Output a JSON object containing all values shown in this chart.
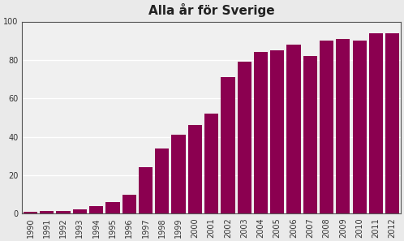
{
  "title": "Alla år för Sverige",
  "years": [
    "1990",
    "1991",
    "1992",
    "1993",
    "1994",
    "1995",
    "1996",
    "1997",
    "1998",
    "1999",
    "2000",
    "2001",
    "2002",
    "2003",
    "2004",
    "2005",
    "2006",
    "2007",
    "2008",
    "2009",
    "2010",
    "2011",
    "2012"
  ],
  "values": [
    1,
    1.5,
    1.5,
    2,
    4,
    6,
    10,
    24,
    34,
    41,
    46,
    52,
    71,
    79,
    84,
    85,
    88,
    82,
    90,
    91,
    90,
    94,
    94
  ],
  "bar_color": "#8B0050",
  "bg_color": "#EAEAEA",
  "plot_bg_color": "#F0F0F0",
  "ylim": [
    0,
    100
  ],
  "yticks": [
    0,
    20,
    40,
    60,
    80,
    100
  ],
  "title_fontsize": 11,
  "tick_fontsize": 7,
  "grid_color": "#FFFFFF",
  "spine_color": "#555555"
}
